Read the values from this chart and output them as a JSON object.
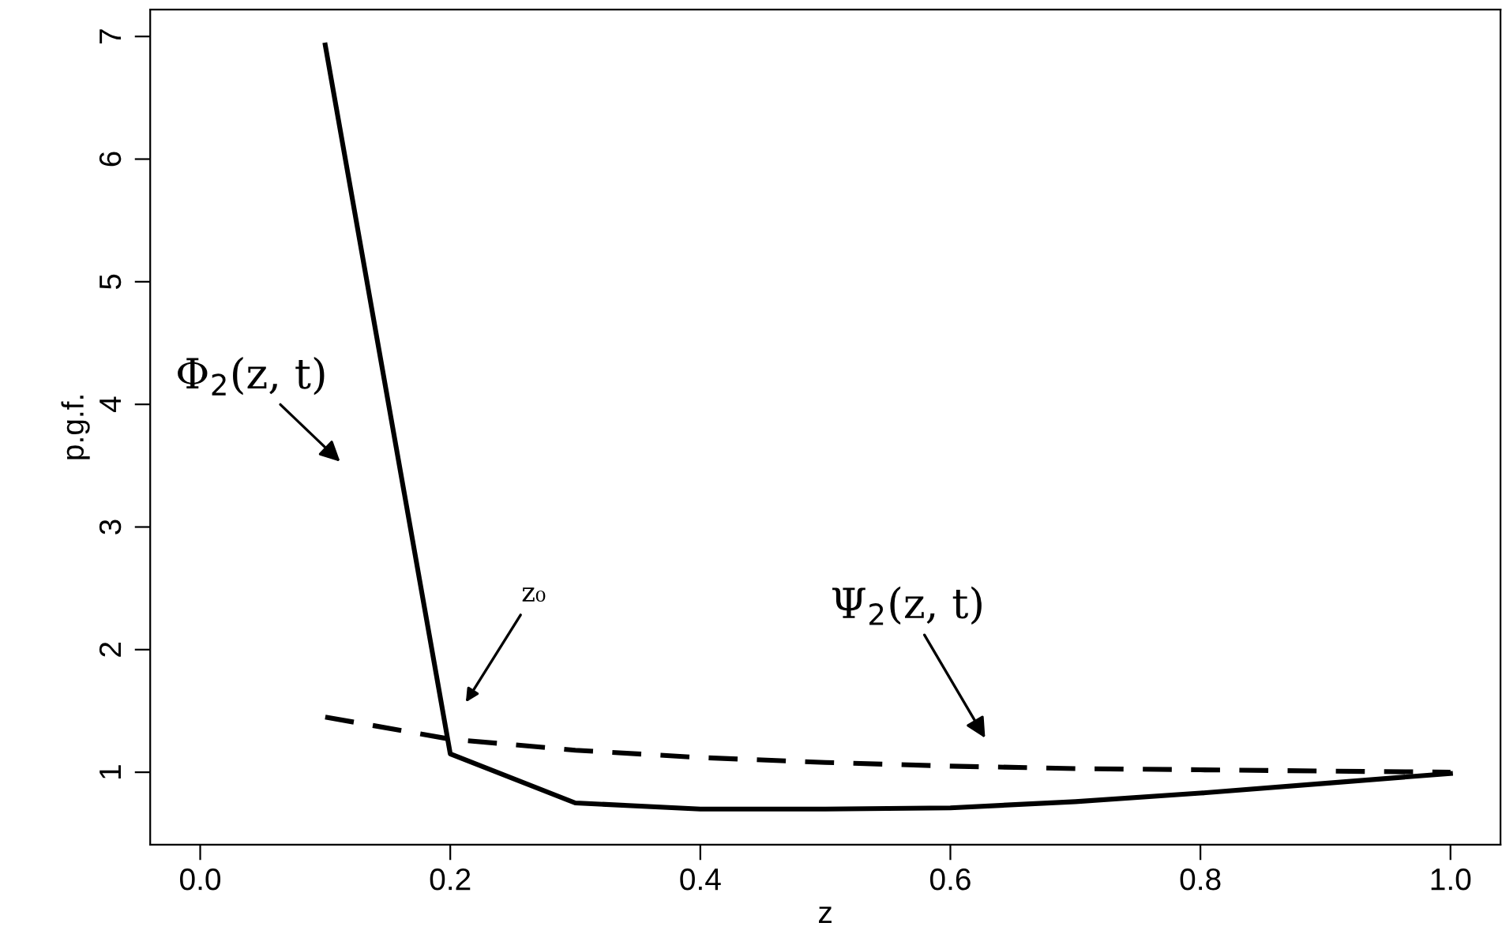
{
  "chart_data": {
    "type": "line",
    "xlabel": "z",
    "ylabel": "p.g.f.",
    "x": [
      0.1,
      0.2,
      0.3,
      0.4,
      0.5,
      0.6,
      0.7,
      0.8,
      0.9,
      1.0
    ],
    "series": [
      {
        "color": "#000000",
        "line_style": "solid",
        "values": [
          6.93,
          1.15,
          0.75,
          0.7,
          0.7,
          0.71,
          0.76,
          0.83,
          0.91,
          0.99
        ]
      },
      {
        "color": "#000000",
        "line_style": "dashed",
        "values": [
          1.45,
          1.27,
          1.18,
          1.12,
          1.08,
          1.05,
          1.03,
          1.02,
          1.01,
          1.0
        ]
      }
    ],
    "xlim": [
      -0.04,
      1.04
    ],
    "ylim": [
      0.41,
      7.22
    ],
    "xticks": [
      {
        "value": 0.0,
        "label": "0.0"
      },
      {
        "value": 0.2,
        "label": "0.2"
      },
      {
        "value": 0.4,
        "label": "0.4"
      },
      {
        "value": 0.6,
        "label": "0.6"
      },
      {
        "value": 0.8,
        "label": "0.8"
      },
      {
        "value": 1.0,
        "label": "1.0"
      }
    ],
    "yticks": [
      1,
      2,
      3,
      4,
      5,
      6,
      7
    ],
    "marker": "none",
    "grid": false,
    "annotations": [
      "Φ$_{2}$(z, t)",
      "z₀",
      "Ψ$_{2}$(z, t)"
    ]
  }
}
